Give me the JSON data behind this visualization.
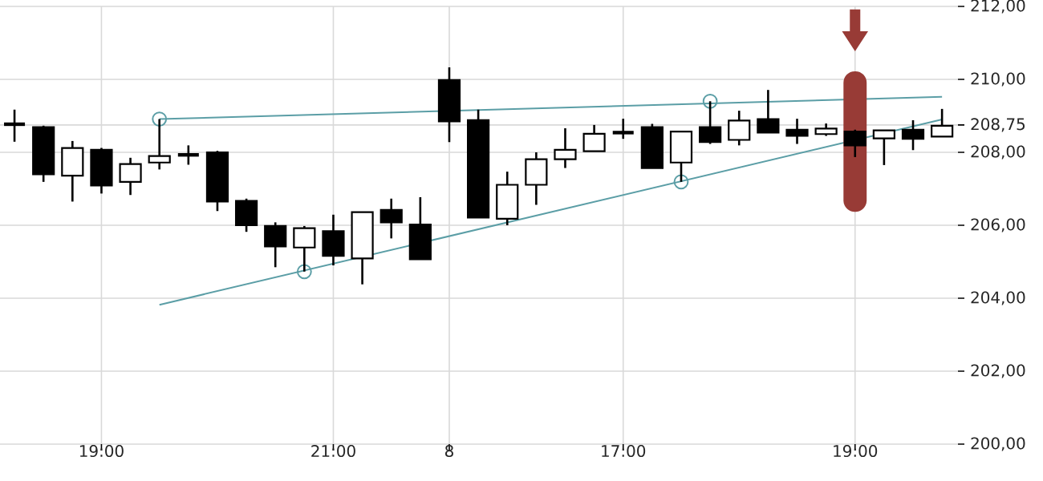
{
  "chart_data": {
    "type": "candlestick",
    "categories": [
      null,
      null,
      null,
      "19:00",
      null,
      null,
      null,
      null,
      null,
      null,
      null,
      "21:00",
      null,
      null,
      null,
      "8",
      null,
      null,
      null,
      null,
      null,
      "17:00",
      null,
      null,
      null,
      null,
      null,
      null,
      null,
      "19:00",
      null,
      null,
      null
    ],
    "ohlc": [
      [
        208.77,
        209.17,
        208.29,
        208.77
      ],
      [
        208.69,
        208.73,
        207.19,
        207.4
      ],
      [
        207.36,
        208.31,
        206.65,
        208.12
      ],
      [
        208.07,
        208.12,
        206.87,
        207.09
      ],
      [
        207.19,
        207.85,
        206.83,
        207.68
      ],
      [
        207.72,
        208.91,
        207.53,
        207.9
      ],
      [
        207.93,
        208.19,
        207.66,
        207.93
      ],
      [
        208.0,
        208.04,
        206.39,
        206.65
      ],
      [
        206.67,
        206.73,
        205.82,
        206.0
      ],
      [
        205.98,
        206.08,
        204.85,
        205.42
      ],
      [
        205.39,
        205.98,
        204.73,
        205.92
      ],
      [
        205.84,
        206.29,
        204.9,
        205.16
      ],
      [
        205.09,
        206.36,
        204.38,
        206.36
      ],
      [
        206.42,
        206.73,
        205.64,
        206.08
      ],
      [
        206.02,
        206.77,
        205.07,
        205.07
      ],
      [
        209.98,
        210.33,
        208.28,
        208.85
      ],
      [
        208.88,
        209.17,
        206.21,
        206.21
      ],
      [
        206.18,
        207.47,
        206.0,
        207.11
      ],
      [
        207.11,
        208.0,
        206.56,
        207.81
      ],
      [
        207.81,
        208.66,
        207.57,
        208.07
      ],
      [
        208.03,
        208.75,
        208.03,
        208.51
      ],
      [
        208.54,
        208.92,
        208.37,
        208.54
      ],
      [
        208.69,
        208.78,
        207.57,
        207.57
      ],
      [
        207.72,
        208.57,
        207.19,
        208.57
      ],
      [
        208.69,
        209.4,
        208.23,
        208.28
      ],
      [
        208.34,
        209.14,
        208.19,
        208.87
      ],
      [
        208.91,
        209.71,
        208.54,
        208.54
      ],
      [
        208.62,
        208.92,
        208.23,
        208.45
      ],
      [
        208.5,
        208.79,
        208.45,
        208.65
      ],
      [
        208.57,
        208.62,
        207.87,
        208.19
      ],
      [
        208.38,
        208.6,
        207.65,
        208.6
      ],
      [
        208.62,
        208.88,
        208.06,
        208.37
      ],
      [
        208.43,
        209.19,
        208.43,
        208.73
      ]
    ],
    "series": [
      {
        "type": "line",
        "color": "#5b9ea6",
        "values": [
          null,
          null,
          null,
          null,
          null,
          208.91,
          null,
          null,
          null,
          null,
          null,
          null,
          null,
          null,
          null,
          null,
          null,
          null,
          null,
          null,
          null,
          null,
          null,
          null,
          null,
          null,
          null,
          null,
          null,
          null,
          null,
          null,
          209.52
        ]
      },
      {
        "type": "line",
        "color": "#5b9ea6",
        "values": [
          null,
          null,
          null,
          null,
          null,
          203.82,
          null,
          null,
          null,
          null,
          null,
          null,
          null,
          null,
          null,
          null,
          null,
          null,
          null,
          null,
          null,
          null,
          null,
          null,
          null,
          null,
          null,
          null,
          null,
          null,
          null,
          null,
          208.9
        ]
      },
      {
        "type": "scatter",
        "color": "#5b9ea6",
        "marker": "circle",
        "values": [
          null,
          null,
          null,
          null,
          null,
          208.91,
          null,
          null,
          null,
          null,
          204.73,
          null,
          null,
          null,
          null,
          null,
          null,
          null,
          null,
          null,
          null,
          null,
          null,
          207.19,
          209.4,
          null,
          null,
          null,
          null,
          null,
          null,
          null,
          null
        ]
      }
    ],
    "ylim": [
      200,
      212
    ],
    "yticks": [
      {
        "value": 200,
        "label": "200,00"
      },
      {
        "value": 202,
        "label": "202,00"
      },
      {
        "value": 204,
        "label": "204,00"
      },
      {
        "value": 206,
        "label": "206,00"
      },
      {
        "value": 208,
        "label": "208,00"
      },
      {
        "value": 208.75,
        "label": "208,75"
      },
      {
        "value": 210,
        "label": "210,00"
      },
      {
        "value": 212,
        "label": "212,00"
      }
    ],
    "grid": true
  }
}
